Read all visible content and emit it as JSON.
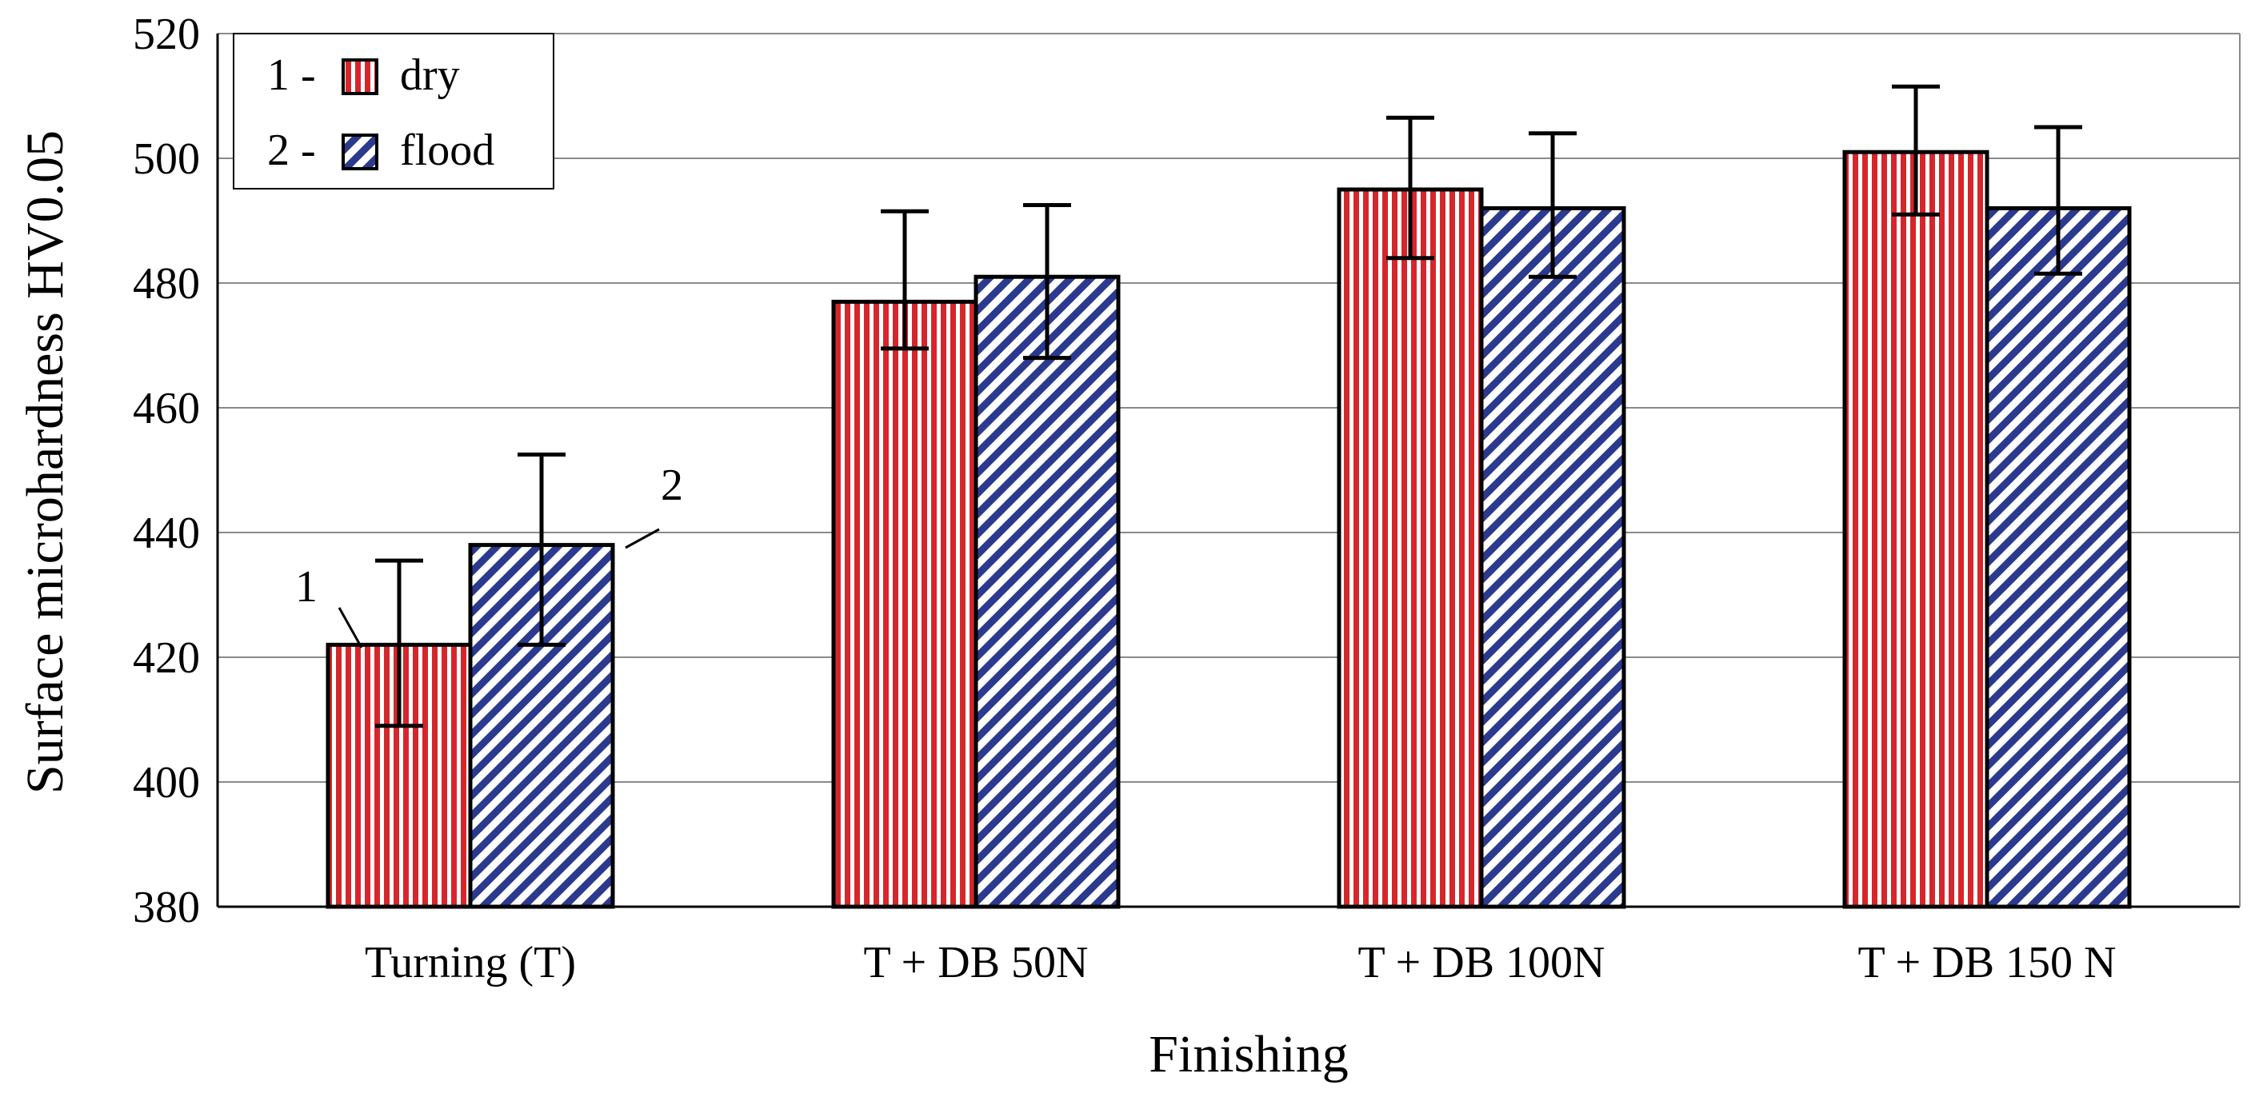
{
  "chart_data": {
    "type": "bar",
    "title": "",
    "xlabel": "Finishing",
    "ylabel": "Surface microhardness HV0.05",
    "ylim": [
      380,
      520
    ],
    "yticks": [
      380,
      400,
      420,
      440,
      460,
      480,
      500,
      520
    ],
    "grid": true,
    "categories": [
      "Turning (T)",
      "T + DB 50N",
      "T + DB 100N",
      "T + DB 150 N"
    ],
    "series": [
      {
        "name": "dry",
        "legend_number": "1 -",
        "pattern": "vertical-stripes",
        "color": "#d6262b",
        "values": [
          422,
          477,
          495,
          501
        ],
        "error_low": [
          409,
          469.5,
          484,
          491
        ],
        "error_high": [
          435.5,
          491.5,
          506.5,
          511.5
        ]
      },
      {
        "name": "flood",
        "legend_number": "2 -",
        "pattern": "diagonal-stripes",
        "color": "#2b3a8f",
        "values": [
          438,
          481,
          492,
          492
        ],
        "error_low": [
          422,
          468,
          481,
          481.5
        ],
        "error_high": [
          452.5,
          492.5,
          504,
          505
        ]
      }
    ],
    "legend_position": "top-left",
    "annotations": [
      {
        "text": "1",
        "series": "dry",
        "category": "Turning (T)"
      },
      {
        "text": "2",
        "series": "flood",
        "category": "Turning (T)"
      }
    ]
  }
}
